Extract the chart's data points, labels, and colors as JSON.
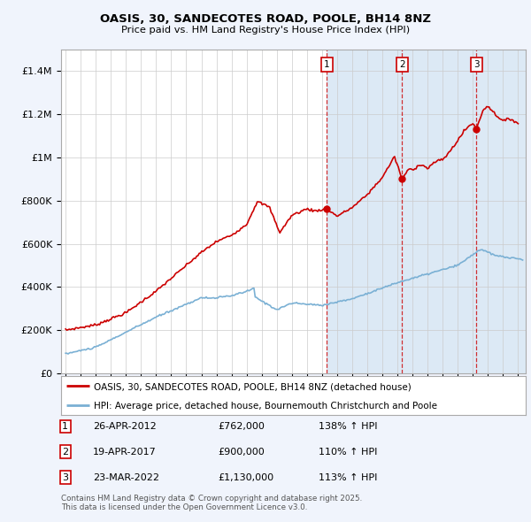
{
  "title": "OASIS, 30, SANDECOTES ROAD, POOLE, BH14 8NZ",
  "subtitle": "Price paid vs. HM Land Registry's House Price Index (HPI)",
  "red_label": "OASIS, 30, SANDECOTES ROAD, POOLE, BH14 8NZ (detached house)",
  "blue_label": "HPI: Average price, detached house, Bournemouth Christchurch and Poole",
  "transactions": [
    {
      "num": 1,
      "date": "26-APR-2012",
      "price": "£762,000",
      "hpi": "138% ↑ HPI",
      "year": 2012.32
    },
    {
      "num": 2,
      "date": "19-APR-2017",
      "price": "£900,000",
      "hpi": "110% ↑ HPI",
      "year": 2017.3
    },
    {
      "num": 3,
      "date": "23-MAR-2022",
      "price": "£1,130,000",
      "hpi": "113% ↑ HPI",
      "year": 2022.23
    }
  ],
  "transaction_prices": [
    762000,
    900000,
    1130000
  ],
  "footnote1": "Contains HM Land Registry data © Crown copyright and database right 2025.",
  "footnote2": "This data is licensed under the Open Government Licence v3.0.",
  "ylim_max": 1500000,
  "xlim_start": 1994.7,
  "xlim_end": 2025.5,
  "red_color": "#cc0000",
  "blue_color": "#7ab0d4",
  "shade_color": "#dce9f5",
  "bg_color": "#f0f4fc",
  "plot_bg": "#ffffff",
  "grid_color": "#cccccc"
}
